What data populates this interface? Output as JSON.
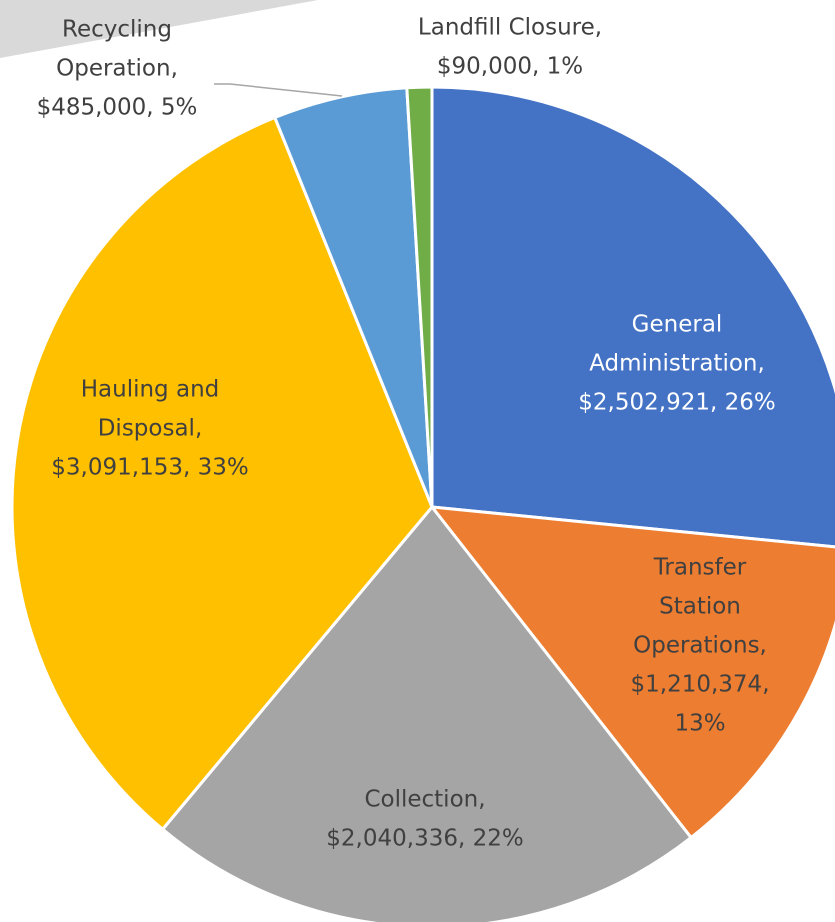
{
  "chart_data": {
    "type": "pie",
    "values": [
      2502921,
      1210374,
      2040336,
      3091153,
      485000,
      90000
    ],
    "value_labels": [
      [
        "General",
        "Administration,",
        "$2,502,921, 26%"
      ],
      [
        "Transfer",
        "Station",
        "Operations,",
        "$1,210,374,",
        "13%"
      ],
      [
        "Collection,",
        "$2,040,336, 22%"
      ],
      [
        "Hauling and",
        "Disposal,",
        "$3,091,153, 33%"
      ],
      [
        "Recycling",
        "Operation,",
        "$485,000, 5%"
      ],
      [
        "Landfill Closure,",
        "$90,000, 1%"
      ]
    ],
    "colors": [
      "#4472c4",
      "#ed7d31",
      "#a5a5a5",
      "#ffc000",
      "#5b9bd5",
      "#70ad47"
    ],
    "label_colors": [
      "#ffffff",
      "#404040",
      "#404040",
      "#404040",
      "#404040",
      "#404040"
    ]
  }
}
